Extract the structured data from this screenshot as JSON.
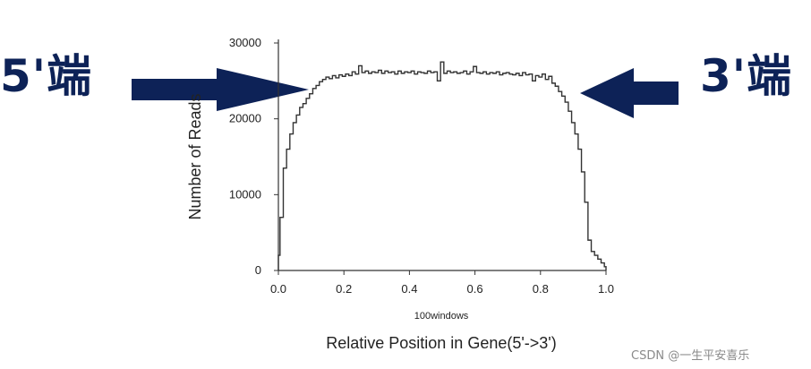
{
  "annotations": {
    "left_label": "5'端",
    "right_label": "3'端",
    "arrow_color": "#0d2257"
  },
  "watermark": "CSDN @一生平安喜乐",
  "chart_data": {
    "type": "line",
    "title": "",
    "xlabel": "Relative Position in Gene(5'->3')",
    "sublabel": "100windows",
    "ylabel": "Number of Reads",
    "xlim": [
      0.0,
      1.0
    ],
    "ylim": [
      0,
      30000
    ],
    "x_ticks": [
      "0.0",
      "0.2",
      "0.4",
      "0.6",
      "0.8",
      "1.0"
    ],
    "y_ticks": [
      "0",
      "10000",
      "20000",
      "30000"
    ],
    "grid": false,
    "line_color": "#333333",
    "series": [
      {
        "x": [
          0.0,
          0.01,
          0.02,
          0.03,
          0.04,
          0.05,
          0.06,
          0.07,
          0.08,
          0.09,
          0.1,
          0.11,
          0.12,
          0.13,
          0.14,
          0.15,
          0.16,
          0.17,
          0.18,
          0.19,
          0.2,
          0.21,
          0.22,
          0.23,
          0.24,
          0.25,
          0.26,
          0.27,
          0.28,
          0.29,
          0.3,
          0.31,
          0.32,
          0.33,
          0.34,
          0.35,
          0.36,
          0.37,
          0.38,
          0.39,
          0.4,
          0.41,
          0.42,
          0.43,
          0.44,
          0.45,
          0.46,
          0.47,
          0.48,
          0.49,
          0.5,
          0.51,
          0.52,
          0.53,
          0.54,
          0.55,
          0.56,
          0.57,
          0.58,
          0.59,
          0.6,
          0.61,
          0.62,
          0.63,
          0.64,
          0.65,
          0.66,
          0.67,
          0.68,
          0.69,
          0.7,
          0.71,
          0.72,
          0.73,
          0.74,
          0.75,
          0.76,
          0.77,
          0.78,
          0.79,
          0.8,
          0.81,
          0.82,
          0.83,
          0.84,
          0.85,
          0.86,
          0.87,
          0.88,
          0.89,
          0.9,
          0.91,
          0.92,
          0.93,
          0.94,
          0.95,
          0.96,
          0.97,
          0.98,
          0.99,
          1.0
        ],
        "y": [
          2000,
          7000,
          13500,
          16000,
          18000,
          19500,
          20500,
          21500,
          22000,
          22700,
          23300,
          24000,
          24400,
          24900,
          25200,
          25500,
          25300,
          25700,
          25400,
          25800,
          25600,
          25900,
          25700,
          26200,
          25900,
          27000,
          26100,
          26300,
          26000,
          26200,
          26100,
          26400,
          26000,
          26300,
          26100,
          26200,
          25900,
          26300,
          26000,
          26200,
          26100,
          26300,
          25900,
          26200,
          26100,
          26000,
          26300,
          26100,
          26200,
          25000,
          27500,
          26000,
          26300,
          26100,
          26200,
          26000,
          26100,
          26300,
          25900,
          26200,
          26900,
          26100,
          26000,
          26200,
          25900,
          26100,
          26000,
          26200,
          25800,
          26000,
          26100,
          25900,
          25800,
          26000,
          25700,
          26100,
          25800,
          25900,
          25000,
          25700,
          25500,
          25900,
          25200,
          25600,
          24700,
          24300,
          23600,
          23000,
          22200,
          21000,
          19500,
          18000,
          16000,
          13000,
          9000,
          4000,
          2500,
          2000,
          1500,
          1000,
          500
        ]
      }
    ]
  }
}
